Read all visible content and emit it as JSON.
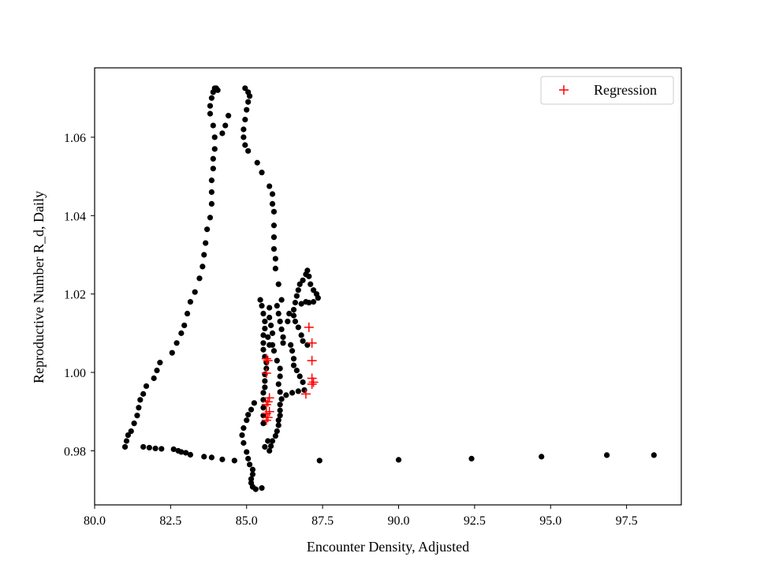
{
  "chart_data": {
    "type": "scatter",
    "xlabel": "Encounter Density, Adjusted",
    "ylabel": "Reproductive Number R_d, Daily",
    "xlim": [
      80.0,
      99.3
    ],
    "ylim": [
      0.9662,
      1.0777
    ],
    "xticks": [
      80.0,
      82.5,
      85.0,
      87.5,
      90.0,
      92.5,
      95.0,
      97.5
    ],
    "xtick_labels": [
      "80.0",
      "82.5",
      "85.0",
      "87.5",
      "90.0",
      "92.5",
      "95.0",
      "97.5"
    ],
    "yticks": [
      0.98,
      1.0,
      1.02,
      1.04,
      1.06
    ],
    "ytick_labels": [
      "0.98",
      "1.00",
      "1.02",
      "1.04",
      "1.06"
    ],
    "grid": false,
    "legend_position": "top-right",
    "legend": [
      {
        "label": "Regression",
        "marker": "+",
        "color": "#ff0000"
      }
    ],
    "series": [
      {
        "marker": "circle",
        "color": "#000000",
        "points": [
          [
            85.5,
            0.9705
          ],
          [
            85.3,
            0.9702
          ],
          [
            85.2,
            0.9708
          ],
          [
            85.15,
            0.9718
          ],
          [
            85.15,
            0.9728
          ],
          [
            85.2,
            0.974
          ],
          [
            85.2,
            0.9752
          ],
          [
            85.1,
            0.9765
          ],
          [
            85.05,
            0.978
          ],
          [
            85.0,
            0.9797
          ],
          [
            84.9,
            0.982
          ],
          [
            84.85,
            0.984
          ],
          [
            84.9,
            0.9858
          ],
          [
            85.0,
            0.9878
          ],
          [
            85.05,
            0.9892
          ],
          [
            85.15,
            0.9905
          ],
          [
            85.25,
            0.9922
          ],
          [
            85.75,
            0.98
          ],
          [
            85.8,
            0.9812
          ],
          [
            85.85,
            0.9825
          ],
          [
            85.95,
            0.9838
          ],
          [
            86.0,
            0.985
          ],
          [
            86.05,
            0.9865
          ],
          [
            86.05,
            0.9878
          ],
          [
            86.1,
            0.989
          ],
          [
            86.1,
            0.9903
          ],
          [
            86.1,
            0.9918
          ],
          [
            86.15,
            0.9932
          ],
          [
            86.3,
            0.9942
          ],
          [
            86.5,
            0.9948
          ],
          [
            86.7,
            0.9952
          ],
          [
            86.9,
            0.9955
          ],
          [
            85.55,
            0.987
          ],
          [
            85.55,
            0.989
          ],
          [
            85.55,
            0.991
          ],
          [
            85.55,
            0.993
          ],
          [
            85.55,
            0.9948
          ],
          [
            85.6,
            0.9962
          ],
          [
            85.6,
            0.9978
          ],
          [
            85.6,
            0.9995
          ],
          [
            85.65,
            1.001
          ],
          [
            85.65,
            1.0025
          ],
          [
            85.6,
            1.004
          ],
          [
            85.55,
            1.0058
          ],
          [
            85.55,
            1.0075
          ],
          [
            85.55,
            1.0095
          ],
          [
            85.6,
            1.0112
          ],
          [
            85.6,
            1.013
          ],
          [
            85.55,
            1.015
          ],
          [
            85.5,
            1.017
          ],
          [
            85.45,
            1.0185
          ],
          [
            85.75,
            1.0165
          ],
          [
            85.75,
            1.014
          ],
          [
            85.8,
            1.012
          ],
          [
            85.85,
            1.01
          ],
          [
            85.85,
            1.007
          ],
          [
            85.9,
            1.0055
          ],
          [
            86.0,
            1.003
          ],
          [
            86.1,
            1.001
          ],
          [
            86.1,
            0.999
          ],
          [
            86.05,
            0.997
          ],
          [
            86.1,
            0.995
          ],
          [
            86.0,
            1.017
          ],
          [
            86.05,
            1.015
          ],
          [
            86.1,
            1.013
          ],
          [
            86.15,
            1.011
          ],
          [
            86.2,
            1.009
          ],
          [
            86.2,
            1.0075
          ],
          [
            86.45,
            1.007
          ],
          [
            86.5,
            1.0055
          ],
          [
            86.55,
            1.0035
          ],
          [
            86.55,
            1.0018
          ],
          [
            86.65,
            1.0005
          ],
          [
            86.75,
            0.999
          ],
          [
            86.85,
            0.9975
          ],
          [
            86.35,
            1.013
          ],
          [
            86.4,
            1.015
          ],
          [
            86.55,
            1.016
          ],
          [
            86.6,
            1.0178
          ],
          [
            86.65,
            1.0195
          ],
          [
            86.7,
            1.021
          ],
          [
            86.75,
            1.0225
          ],
          [
            86.85,
            1.0235
          ],
          [
            86.95,
            1.025
          ],
          [
            87.0,
            1.026
          ],
          [
            87.05,
            1.0245
          ],
          [
            87.1,
            1.0225
          ],
          [
            87.2,
            1.021
          ],
          [
            87.3,
            1.02
          ],
          [
            87.35,
            1.019
          ],
          [
            87.2,
            1.018
          ],
          [
            87.05,
            1.0178
          ],
          [
            86.95,
            1.018
          ],
          [
            86.8,
            1.0175
          ],
          [
            86.55,
            1.0145
          ],
          [
            86.6,
            1.013
          ],
          [
            86.7,
            1.0115
          ],
          [
            86.8,
            1.0095
          ],
          [
            86.85,
            1.008
          ],
          [
            87.0,
            1.007
          ],
          [
            85.6,
            0.981
          ],
          [
            85.7,
            0.9825
          ],
          [
            85.7,
            1.009
          ],
          [
            85.75,
            1.007
          ],
          [
            81.0,
            0.981
          ],
          [
            81.05,
            0.9825
          ],
          [
            81.1,
            0.984
          ],
          [
            81.2,
            0.985
          ],
          [
            81.3,
            0.987
          ],
          [
            81.4,
            0.989
          ],
          [
            81.45,
            0.991
          ],
          [
            81.5,
            0.993
          ],
          [
            81.6,
            0.9945
          ],
          [
            81.7,
            0.9965
          ],
          [
            81.95,
            0.9985
          ],
          [
            82.05,
            1.0005
          ],
          [
            82.15,
            1.0025
          ],
          [
            82.55,
            1.005
          ],
          [
            82.7,
            1.0075
          ],
          [
            82.85,
            1.01
          ],
          [
            82.95,
            1.012
          ],
          [
            83.05,
            1.015
          ],
          [
            83.15,
            1.018
          ],
          [
            83.3,
            1.0205
          ],
          [
            83.45,
            1.024
          ],
          [
            83.55,
            1.027
          ],
          [
            83.6,
            1.03
          ],
          [
            83.65,
            1.033
          ],
          [
            83.7,
            1.0365
          ],
          [
            83.8,
            1.0395
          ],
          [
            83.85,
            1.043
          ],
          [
            83.85,
            1.046
          ],
          [
            83.85,
            1.049
          ],
          [
            83.9,
            1.052
          ],
          [
            83.9,
            1.0545
          ],
          [
            83.95,
            1.057
          ],
          [
            83.95,
            1.06
          ],
          [
            83.9,
            1.063
          ],
          [
            83.8,
            1.066
          ],
          [
            83.8,
            1.068
          ],
          [
            83.85,
            1.07
          ],
          [
            83.9,
            1.0715
          ],
          [
            83.95,
            1.0725
          ],
          [
            84.0,
            1.0725
          ],
          [
            84.05,
            1.072
          ],
          [
            84.2,
            1.061
          ],
          [
            84.3,
            1.063
          ],
          [
            84.4,
            1.0655
          ],
          [
            84.95,
            1.0725
          ],
          [
            85.05,
            1.0715
          ],
          [
            85.1,
            1.0705
          ],
          [
            85.05,
            1.069
          ],
          [
            85.0,
            1.067
          ],
          [
            84.95,
            1.0645
          ],
          [
            84.9,
            1.062
          ],
          [
            84.9,
            1.06
          ],
          [
            84.95,
            1.058
          ],
          [
            85.05,
            1.0565
          ],
          [
            85.35,
            1.0535
          ],
          [
            85.5,
            1.051
          ],
          [
            85.75,
            1.0475
          ],
          [
            85.85,
            1.0455
          ],
          [
            85.85,
            1.043
          ],
          [
            85.9,
            1.041
          ],
          [
            85.9,
            1.0375
          ],
          [
            85.9,
            1.0345
          ],
          [
            85.9,
            1.0315
          ],
          [
            85.95,
            1.029
          ],
          [
            85.95,
            1.0265
          ],
          [
            86.05,
            1.0225
          ],
          [
            86.15,
            1.0185
          ],
          [
            81.6,
            0.981
          ],
          [
            81.8,
            0.9808
          ],
          [
            82.0,
            0.9806
          ],
          [
            82.2,
            0.9805
          ],
          [
            82.6,
            0.9804
          ],
          [
            82.75,
            0.98
          ],
          [
            82.85,
            0.9797
          ],
          [
            83.0,
            0.9795
          ],
          [
            83.15,
            0.979
          ],
          [
            83.6,
            0.9785
          ],
          [
            83.85,
            0.9783
          ],
          [
            84.2,
            0.9778
          ],
          [
            84.6,
            0.9775
          ],
          [
            87.4,
            0.9775
          ],
          [
            90.0,
            0.9777
          ],
          [
            92.4,
            0.978
          ],
          [
            94.7,
            0.9785
          ],
          [
            96.85,
            0.9789
          ],
          [
            98.4,
            0.9789
          ]
        ]
      },
      {
        "name": "Regression",
        "marker": "plus",
        "color": "#ff0000",
        "points": [
          [
            85.65,
            0.9878
          ],
          [
            85.7,
            0.9885
          ],
          [
            85.65,
            0.9895
          ],
          [
            85.75,
            0.99
          ],
          [
            85.65,
            0.9918
          ],
          [
            85.7,
            0.9925
          ],
          [
            85.75,
            0.9935
          ],
          [
            85.65,
            0.9998
          ],
          [
            85.7,
            1.003
          ],
          [
            85.65,
            1.0035
          ],
          [
            86.95,
            0.9945
          ],
          [
            87.15,
            0.997
          ],
          [
            87.2,
            0.9975
          ],
          [
            87.15,
            0.9985
          ],
          [
            87.15,
            1.003
          ],
          [
            87.15,
            1.0075
          ],
          [
            87.05,
            1.0115
          ]
        ]
      }
    ]
  }
}
